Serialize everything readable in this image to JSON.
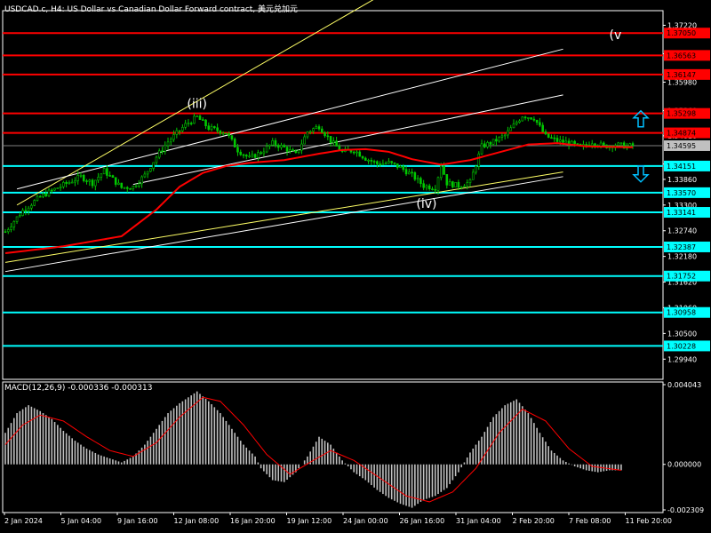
{
  "window": {
    "title": "USDCAD.c, H4:  US Dollar vs Canadian Dollar Forward contract, 美元兑加元"
  },
  "macd_panel": {
    "title": "MACD(12,26,9) -0.000336 -0.000313",
    "ticks": [
      {
        "value": 0.004043,
        "label": "0.004043"
      },
      {
        "value": 0.0,
        "label": "0.000000"
      },
      {
        "value": -0.002309,
        "label": "-0.002309"
      }
    ]
  },
  "colors": {
    "background": "#000000",
    "axis": "#ffffff",
    "bull_candle": "#00c800",
    "bear_candle": "#00c800",
    "moving_average": "#ff0000",
    "red_level": "#ff0000",
    "cyan_level": "#00ffff",
    "label_red_bg": "#ff0000",
    "label_cyan_bg": "#00ffff",
    "label_gray_bg": "#c0c0c0",
    "trend_yellow": "#ffff66",
    "trend_white": "#ffffff",
    "macd_hist": "#c0c0c0",
    "macd_signal": "#ff0000",
    "arrow": "#00bfff"
  },
  "icons": {
    "up_arrow": "up-arrow-icon",
    "down_arrow": "down-arrow-icon"
  },
  "chart_data": {
    "type": "candlestick",
    "symbol": "USDCAD.c",
    "timeframe": "H4",
    "ylim": [
      1.295,
      1.375
    ],
    "price_ticks": [
      "1.37220",
      "1.36600",
      "1.35980",
      "1.35360",
      "1.34810",
      "1.34195",
      "1.33860",
      "1.33300",
      "1.32740",
      "1.32180",
      "1.31620",
      "1.31060",
      "1.30500",
      "1.29940"
    ],
    "x_labels": [
      "2 Jan 2024",
      "5 Jan 04:00",
      "9 Jan 16:00",
      "12 Jan 08:00",
      "16 Jan 20:00",
      "19 Jan 12:00",
      "24 Jan 00:00",
      "26 Jan 16:00",
      "31 Jan 04:00",
      "2 Feb 20:00",
      "7 Feb 08:00",
      "11 Feb 20:00"
    ],
    "close_anchors": [
      [
        0,
        1.3272
      ],
      [
        6,
        1.3318
      ],
      [
        12,
        1.3348
      ],
      [
        18,
        1.3368
      ],
      [
        26,
        1.3392
      ],
      [
        30,
        1.3378
      ],
      [
        34,
        1.3405
      ],
      [
        38,
        1.338
      ],
      [
        40,
        1.3368
      ],
      [
        44,
        1.337
      ],
      [
        48,
        1.3395
      ],
      [
        52,
        1.3435
      ],
      [
        56,
        1.3468
      ],
      [
        62,
        1.3505
      ],
      [
        66,
        1.3522
      ],
      [
        70,
        1.3498
      ],
      [
        76,
        1.3488
      ],
      [
        80,
        1.345
      ],
      [
        84,
        1.3432
      ],
      [
        88,
        1.3445
      ],
      [
        92,
        1.3465
      ],
      [
        96,
        1.3455
      ],
      [
        100,
        1.344
      ],
      [
        104,
        1.349
      ],
      [
        108,
        1.3502
      ],
      [
        112,
        1.347
      ],
      [
        116,
        1.3445
      ],
      [
        120,
        1.345
      ],
      [
        124,
        1.3432
      ],
      [
        128,
        1.342
      ],
      [
        132,
        1.3422
      ],
      [
        136,
        1.3412
      ],
      [
        140,
        1.3395
      ],
      [
        144,
        1.3372
      ],
      [
        148,
        1.3368
      ],
      [
        150,
        1.3418
      ],
      [
        152,
        1.3378
      ],
      [
        156,
        1.3372
      ],
      [
        160,
        1.338
      ],
      [
        164,
        1.3458
      ],
      [
        168,
        1.3468
      ],
      [
        172,
        1.3482
      ],
      [
        178,
        1.3525
      ],
      [
        182,
        1.352
      ],
      [
        186,
        1.348
      ],
      [
        190,
        1.347
      ],
      [
        194,
        1.3466
      ],
      [
        198,
        1.3455
      ],
      [
        202,
        1.3468
      ],
      [
        206,
        1.3458
      ],
      [
        210,
        1.3462
      ],
      [
        214,
        1.3458
      ],
      [
        216,
        1.346
      ]
    ],
    "moving_average": [
      [
        0,
        1.3225
      ],
      [
        20,
        1.324
      ],
      [
        40,
        1.3262
      ],
      [
        52,
        1.332
      ],
      [
        60,
        1.337
      ],
      [
        68,
        1.34
      ],
      [
        76,
        1.3415
      ],
      [
        84,
        1.3422
      ],
      [
        96,
        1.3428
      ],
      [
        108,
        1.3442
      ],
      [
        116,
        1.345
      ],
      [
        124,
        1.3452
      ],
      [
        132,
        1.3446
      ],
      [
        140,
        1.343
      ],
      [
        150,
        1.3418
      ],
      [
        160,
        1.3428
      ],
      [
        170,
        1.3445
      ],
      [
        180,
        1.3462
      ],
      [
        190,
        1.3465
      ],
      [
        200,
        1.3458
      ],
      [
        216,
        1.3456
      ]
    ],
    "last_price": {
      "value": 1.34595,
      "label": "1.34595"
    },
    "levels": [
      {
        "value": 1.3705,
        "label": "1.37050",
        "color": "red"
      },
      {
        "value": 1.36563,
        "label": "1.36563",
        "color": "red"
      },
      {
        "value": 1.36147,
        "label": "1.36147",
        "color": "red"
      },
      {
        "value": 1.35298,
        "label": "1.35298",
        "color": "red"
      },
      {
        "value": 1.34874,
        "label": "1.34874",
        "color": "red"
      },
      {
        "value": 1.34151,
        "label": "1.34151",
        "color": "cyan"
      },
      {
        "value": 1.3357,
        "label": "1.33570",
        "color": "cyan"
      },
      {
        "value": 1.33141,
        "label": "1.33141",
        "color": "cyan"
      },
      {
        "value": 1.32387,
        "label": "1.32387",
        "color": "cyan"
      },
      {
        "value": 1.31752,
        "label": "1.31752",
        "color": "cyan"
      },
      {
        "value": 1.30958,
        "label": "1.30958",
        "color": "cyan"
      },
      {
        "value": 1.30228,
        "label": "1.30228",
        "color": "cyan"
      }
    ],
    "trendlines": [
      {
        "color": "yellow",
        "from": [
          4,
          1.333
        ],
        "to": [
          130,
          1.379
        ]
      },
      {
        "color": "white",
        "from": [
          4,
          1.3365
        ],
        "to": [
          192,
          1.367
        ]
      },
      {
        "color": "white",
        "from": [
          44,
          1.3375
        ],
        "to": [
          192,
          1.357
        ]
      },
      {
        "color": "white",
        "from": [
          0,
          1.3185
        ],
        "to": [
          192,
          1.3392
        ]
      },
      {
        "color": "yellow",
        "from": [
          0,
          1.3205
        ],
        "to": [
          192,
          1.3402
        ]
      }
    ],
    "wave_labels": [
      {
        "text": "(iii)",
        "bar": 66,
        "price": 1.3542
      },
      {
        "text": "(iv)",
        "bar": 145,
        "price": 1.3324
      },
      {
        "text": "(v",
        "bar": 210,
        "price": 1.3692
      }
    ],
    "macd": {
      "histogram_anchors": [
        [
          0,
          0.0016
        ],
        [
          4,
          0.0026
        ],
        [
          8,
          0.003
        ],
        [
          12,
          0.0027
        ],
        [
          16,
          0.0023
        ],
        [
          20,
          0.0017
        ],
        [
          24,
          0.0012
        ],
        [
          28,
          0.0008
        ],
        [
          32,
          0.0005
        ],
        [
          36,
          0.0003
        ],
        [
          40,
          0.0001
        ],
        [
          44,
          0.0004
        ],
        [
          48,
          0.001
        ],
        [
          52,
          0.0018
        ],
        [
          56,
          0.0026
        ],
        [
          60,
          0.0031
        ],
        [
          64,
          0.0035
        ],
        [
          66,
          0.0037
        ],
        [
          70,
          0.0032
        ],
        [
          74,
          0.0026
        ],
        [
          78,
          0.0018
        ],
        [
          82,
          0.001
        ],
        [
          86,
          0.0004
        ],
        [
          88,
          -0.0002
        ],
        [
          92,
          -0.0008
        ],
        [
          96,
          -0.0009
        ],
        [
          100,
          -0.0004
        ],
        [
          104,
          0.0004
        ],
        [
          108,
          0.0014
        ],
        [
          112,
          0.001
        ],
        [
          116,
          0.0002
        ],
        [
          120,
          -0.0004
        ],
        [
          124,
          -0.0008
        ],
        [
          128,
          -0.0013
        ],
        [
          132,
          -0.0017
        ],
        [
          136,
          -0.002
        ],
        [
          140,
          -0.0022
        ],
        [
          144,
          -0.0018
        ],
        [
          148,
          -0.0016
        ],
        [
          152,
          -0.0012
        ],
        [
          156,
          -0.0004
        ],
        [
          160,
          0.0006
        ],
        [
          164,
          0.0014
        ],
        [
          168,
          0.0024
        ],
        [
          172,
          0.003
        ],
        [
          176,
          0.0033
        ],
        [
          180,
          0.0026
        ],
        [
          184,
          0.0016
        ],
        [
          188,
          0.0007
        ],
        [
          192,
          0.0002
        ],
        [
          196,
          -0.0001
        ],
        [
          200,
          -0.0003
        ],
        [
          204,
          -0.0004
        ],
        [
          208,
          -0.0003
        ],
        [
          212,
          -0.0003
        ]
      ],
      "signal_anchors": [
        [
          0,
          0.001
        ],
        [
          6,
          0.002
        ],
        [
          12,
          0.0025
        ],
        [
          20,
          0.0022
        ],
        [
          28,
          0.0014
        ],
        [
          36,
          0.0007
        ],
        [
          44,
          0.0004
        ],
        [
          52,
          0.0011
        ],
        [
          60,
          0.0024
        ],
        [
          68,
          0.0034
        ],
        [
          74,
          0.0032
        ],
        [
          82,
          0.002
        ],
        [
          90,
          0.0005
        ],
        [
          98,
          -0.0005
        ],
        [
          106,
          0.0002
        ],
        [
          112,
          0.0007
        ],
        [
          120,
          0.0002
        ],
        [
          130,
          -0.0008
        ],
        [
          138,
          -0.0016
        ],
        [
          146,
          -0.0019
        ],
        [
          154,
          -0.0014
        ],
        [
          162,
          -0.0002
        ],
        [
          170,
          0.0016
        ],
        [
          178,
          0.0028
        ],
        [
          186,
          0.0022
        ],
        [
          194,
          0.0008
        ],
        [
          202,
          -0.0001
        ],
        [
          212,
          -0.0003
        ]
      ]
    }
  }
}
